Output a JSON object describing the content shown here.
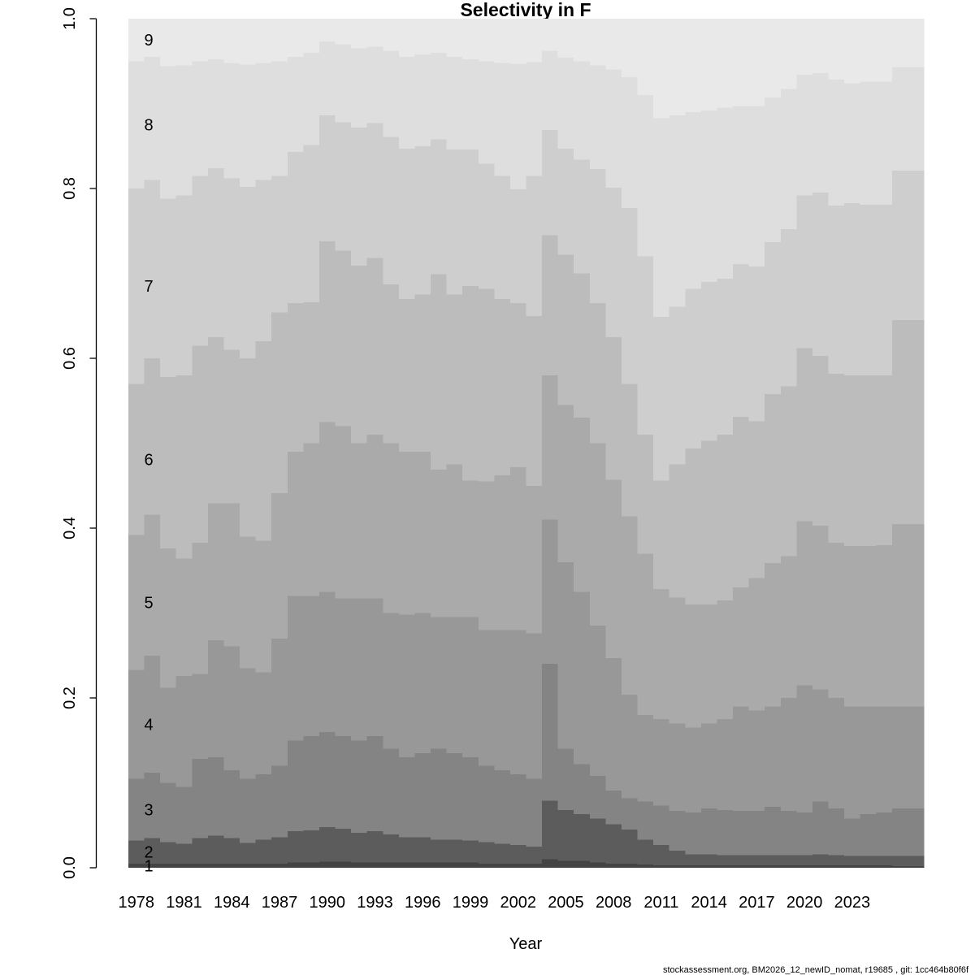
{
  "title": "Selectivity in F",
  "xlabel": "Year",
  "footer": "stockassessment.org, BM2026_12_newID_nomat, r19685 , git: 1cc464b80f6f",
  "chart_data": {
    "type": "area",
    "subtype": "stacked-proportions-by-year",
    "title": "Selectivity in F",
    "xlabel": "Year",
    "ylabel": "",
    "ylim": [
      0.0,
      1.0
    ],
    "grid": false,
    "legend": "in-plot age labels at left edge",
    "years": [
      1978,
      1979,
      1980,
      1981,
      1982,
      1983,
      1984,
      1985,
      1986,
      1987,
      1988,
      1989,
      1990,
      1991,
      1992,
      1993,
      1994,
      1995,
      1996,
      1997,
      1998,
      1999,
      2000,
      2001,
      2002,
      2003,
      2004,
      2005,
      2006,
      2007,
      2008,
      2009,
      2010,
      2011,
      2012,
      2013,
      2014,
      2015,
      2016,
      2017,
      2018,
      2019,
      2020,
      2021,
      2022,
      2023,
      2024,
      2025,
      2026,
      2027
    ],
    "x_tick_labels": [
      "1978",
      "1981",
      "1984",
      "1987",
      "1990",
      "1993",
      "1996",
      "1999",
      "2002",
      "2005",
      "2008",
      "2011",
      "2014",
      "2017",
      "2020",
      "2023"
    ],
    "x_tick_year_step": 3,
    "y_tick_labels": [
      "0.0",
      "0.2",
      "0.4",
      "0.6",
      "0.8",
      "1.0"
    ],
    "y_tick_values": [
      0.0,
      0.2,
      0.4,
      0.6,
      0.8,
      1.0
    ],
    "age_labels": [
      "1",
      "2",
      "3",
      "4",
      "5",
      "6",
      "7",
      "8",
      "9"
    ],
    "band_colors": [
      "#434343",
      "#5c5c5c",
      "#848484",
      "#989898",
      "#aaaaaa",
      "#bcbcbc",
      "#cecece",
      "#dedede",
      "#e9e9e9"
    ],
    "note": "series values are cumulative upper boundaries of each age band (stack of 9 ages sums to 1.0)",
    "series": [
      {
        "name": "age1-upper",
        "values": [
          0.005,
          0.005,
          0.005,
          0.005,
          0.005,
          0.005,
          0.005,
          0.005,
          0.005,
          0.005,
          0.006,
          0.006,
          0.007,
          0.007,
          0.006,
          0.006,
          0.006,
          0.006,
          0.006,
          0.006,
          0.006,
          0.006,
          0.005,
          0.005,
          0.005,
          0.005,
          0.01,
          0.008,
          0.008,
          0.006,
          0.005,
          0.005,
          0.004,
          0.003,
          0.003,
          0.003,
          0.003,
          0.003,
          0.003,
          0.003,
          0.003,
          0.003,
          0.003,
          0.003,
          0.003,
          0.003,
          0.003,
          0.003,
          0.002,
          0.002
        ]
      },
      {
        "name": "age2-upper",
        "values": [
          0.032,
          0.035,
          0.03,
          0.028,
          0.035,
          0.038,
          0.035,
          0.029,
          0.033,
          0.036,
          0.043,
          0.044,
          0.048,
          0.046,
          0.041,
          0.043,
          0.039,
          0.036,
          0.036,
          0.033,
          0.033,
          0.032,
          0.03,
          0.028,
          0.027,
          0.025,
          0.079,
          0.068,
          0.063,
          0.058,
          0.051,
          0.045,
          0.033,
          0.027,
          0.02,
          0.016,
          0.016,
          0.015,
          0.015,
          0.015,
          0.015,
          0.015,
          0.015,
          0.016,
          0.015,
          0.014,
          0.014,
          0.014,
          0.014,
          0.014
        ]
      },
      {
        "name": "age3-upper",
        "values": [
          0.105,
          0.112,
          0.1,
          0.095,
          0.128,
          0.13,
          0.115,
          0.105,
          0.11,
          0.12,
          0.15,
          0.155,
          0.16,
          0.155,
          0.15,
          0.155,
          0.14,
          0.13,
          0.135,
          0.14,
          0.135,
          0.13,
          0.12,
          0.115,
          0.11,
          0.105,
          0.24,
          0.14,
          0.122,
          0.108,
          0.091,
          0.082,
          0.078,
          0.073,
          0.067,
          0.065,
          0.07,
          0.068,
          0.067,
          0.067,
          0.072,
          0.067,
          0.065,
          0.078,
          0.07,
          0.058,
          0.063,
          0.065,
          0.07,
          0.07
        ]
      },
      {
        "name": "age4-upper",
        "values": [
          0.233,
          0.25,
          0.212,
          0.226,
          0.228,
          0.268,
          0.261,
          0.235,
          0.23,
          0.27,
          0.32,
          0.32,
          0.325,
          0.317,
          0.317,
          0.317,
          0.3,
          0.298,
          0.3,
          0.295,
          0.295,
          0.295,
          0.28,
          0.28,
          0.28,
          0.276,
          0.41,
          0.36,
          0.325,
          0.285,
          0.247,
          0.204,
          0.18,
          0.175,
          0.17,
          0.165,
          0.17,
          0.175,
          0.19,
          0.185,
          0.19,
          0.2,
          0.215,
          0.21,
          0.2,
          0.19,
          0.19,
          0.19,
          0.19,
          0.19
        ]
      },
      {
        "name": "age5-upper",
        "values": [
          0.392,
          0.416,
          0.376,
          0.364,
          0.383,
          0.429,
          0.429,
          0.39,
          0.385,
          0.441,
          0.49,
          0.5,
          0.525,
          0.52,
          0.5,
          0.51,
          0.5,
          0.49,
          0.49,
          0.469,
          0.475,
          0.456,
          0.455,
          0.462,
          0.472,
          0.45,
          0.58,
          0.545,
          0.53,
          0.5,
          0.457,
          0.414,
          0.37,
          0.328,
          0.318,
          0.31,
          0.31,
          0.315,
          0.33,
          0.341,
          0.359,
          0.367,
          0.408,
          0.403,
          0.383,
          0.379,
          0.379,
          0.38,
          0.405,
          0.405
        ]
      },
      {
        "name": "age6-upper",
        "values": [
          0.57,
          0.6,
          0.578,
          0.58,
          0.615,
          0.625,
          0.61,
          0.6,
          0.62,
          0.654,
          0.665,
          0.666,
          0.738,
          0.727,
          0.709,
          0.718,
          0.687,
          0.67,
          0.675,
          0.699,
          0.675,
          0.685,
          0.682,
          0.67,
          0.665,
          0.65,
          0.745,
          0.722,
          0.7,
          0.665,
          0.625,
          0.57,
          0.51,
          0.456,
          0.475,
          0.494,
          0.503,
          0.51,
          0.531,
          0.526,
          0.558,
          0.567,
          0.612,
          0.603,
          0.582,
          0.58,
          0.58,
          0.58,
          0.645,
          0.645
        ]
      },
      {
        "name": "age7-upper",
        "values": [
          0.8,
          0.81,
          0.788,
          0.792,
          0.815,
          0.824,
          0.812,
          0.802,
          0.81,
          0.815,
          0.843,
          0.851,
          0.886,
          0.878,
          0.872,
          0.877,
          0.861,
          0.847,
          0.85,
          0.858,
          0.846,
          0.846,
          0.829,
          0.815,
          0.799,
          0.815,
          0.869,
          0.847,
          0.834,
          0.823,
          0.801,
          0.777,
          0.72,
          0.649,
          0.661,
          0.682,
          0.69,
          0.694,
          0.711,
          0.708,
          0.737,
          0.752,
          0.792,
          0.795,
          0.78,
          0.783,
          0.781,
          0.781,
          0.821,
          0.821
        ]
      },
      {
        "name": "age8-upper",
        "values": [
          0.95,
          0.955,
          0.944,
          0.945,
          0.95,
          0.952,
          0.948,
          0.946,
          0.948,
          0.95,
          0.955,
          0.96,
          0.973,
          0.97,
          0.965,
          0.967,
          0.962,
          0.955,
          0.958,
          0.96,
          0.955,
          0.952,
          0.95,
          0.948,
          0.947,
          0.949,
          0.962,
          0.954,
          0.95,
          0.945,
          0.94,
          0.931,
          0.91,
          0.883,
          0.886,
          0.89,
          0.892,
          0.895,
          0.897,
          0.897,
          0.907,
          0.917,
          0.934,
          0.936,
          0.928,
          0.924,
          0.926,
          0.926,
          0.943,
          0.943
        ]
      },
      {
        "name": "age9-upper",
        "values": [
          1,
          1,
          1,
          1,
          1,
          1,
          1,
          1,
          1,
          1,
          1,
          1,
          1,
          1,
          1,
          1,
          1,
          1,
          1,
          1,
          1,
          1,
          1,
          1,
          1,
          1,
          1,
          1,
          1,
          1,
          1,
          1,
          1,
          1,
          1,
          1,
          1,
          1,
          1,
          1,
          1,
          1,
          1,
          1,
          1,
          1,
          1,
          1,
          1,
          1
        ]
      }
    ]
  }
}
